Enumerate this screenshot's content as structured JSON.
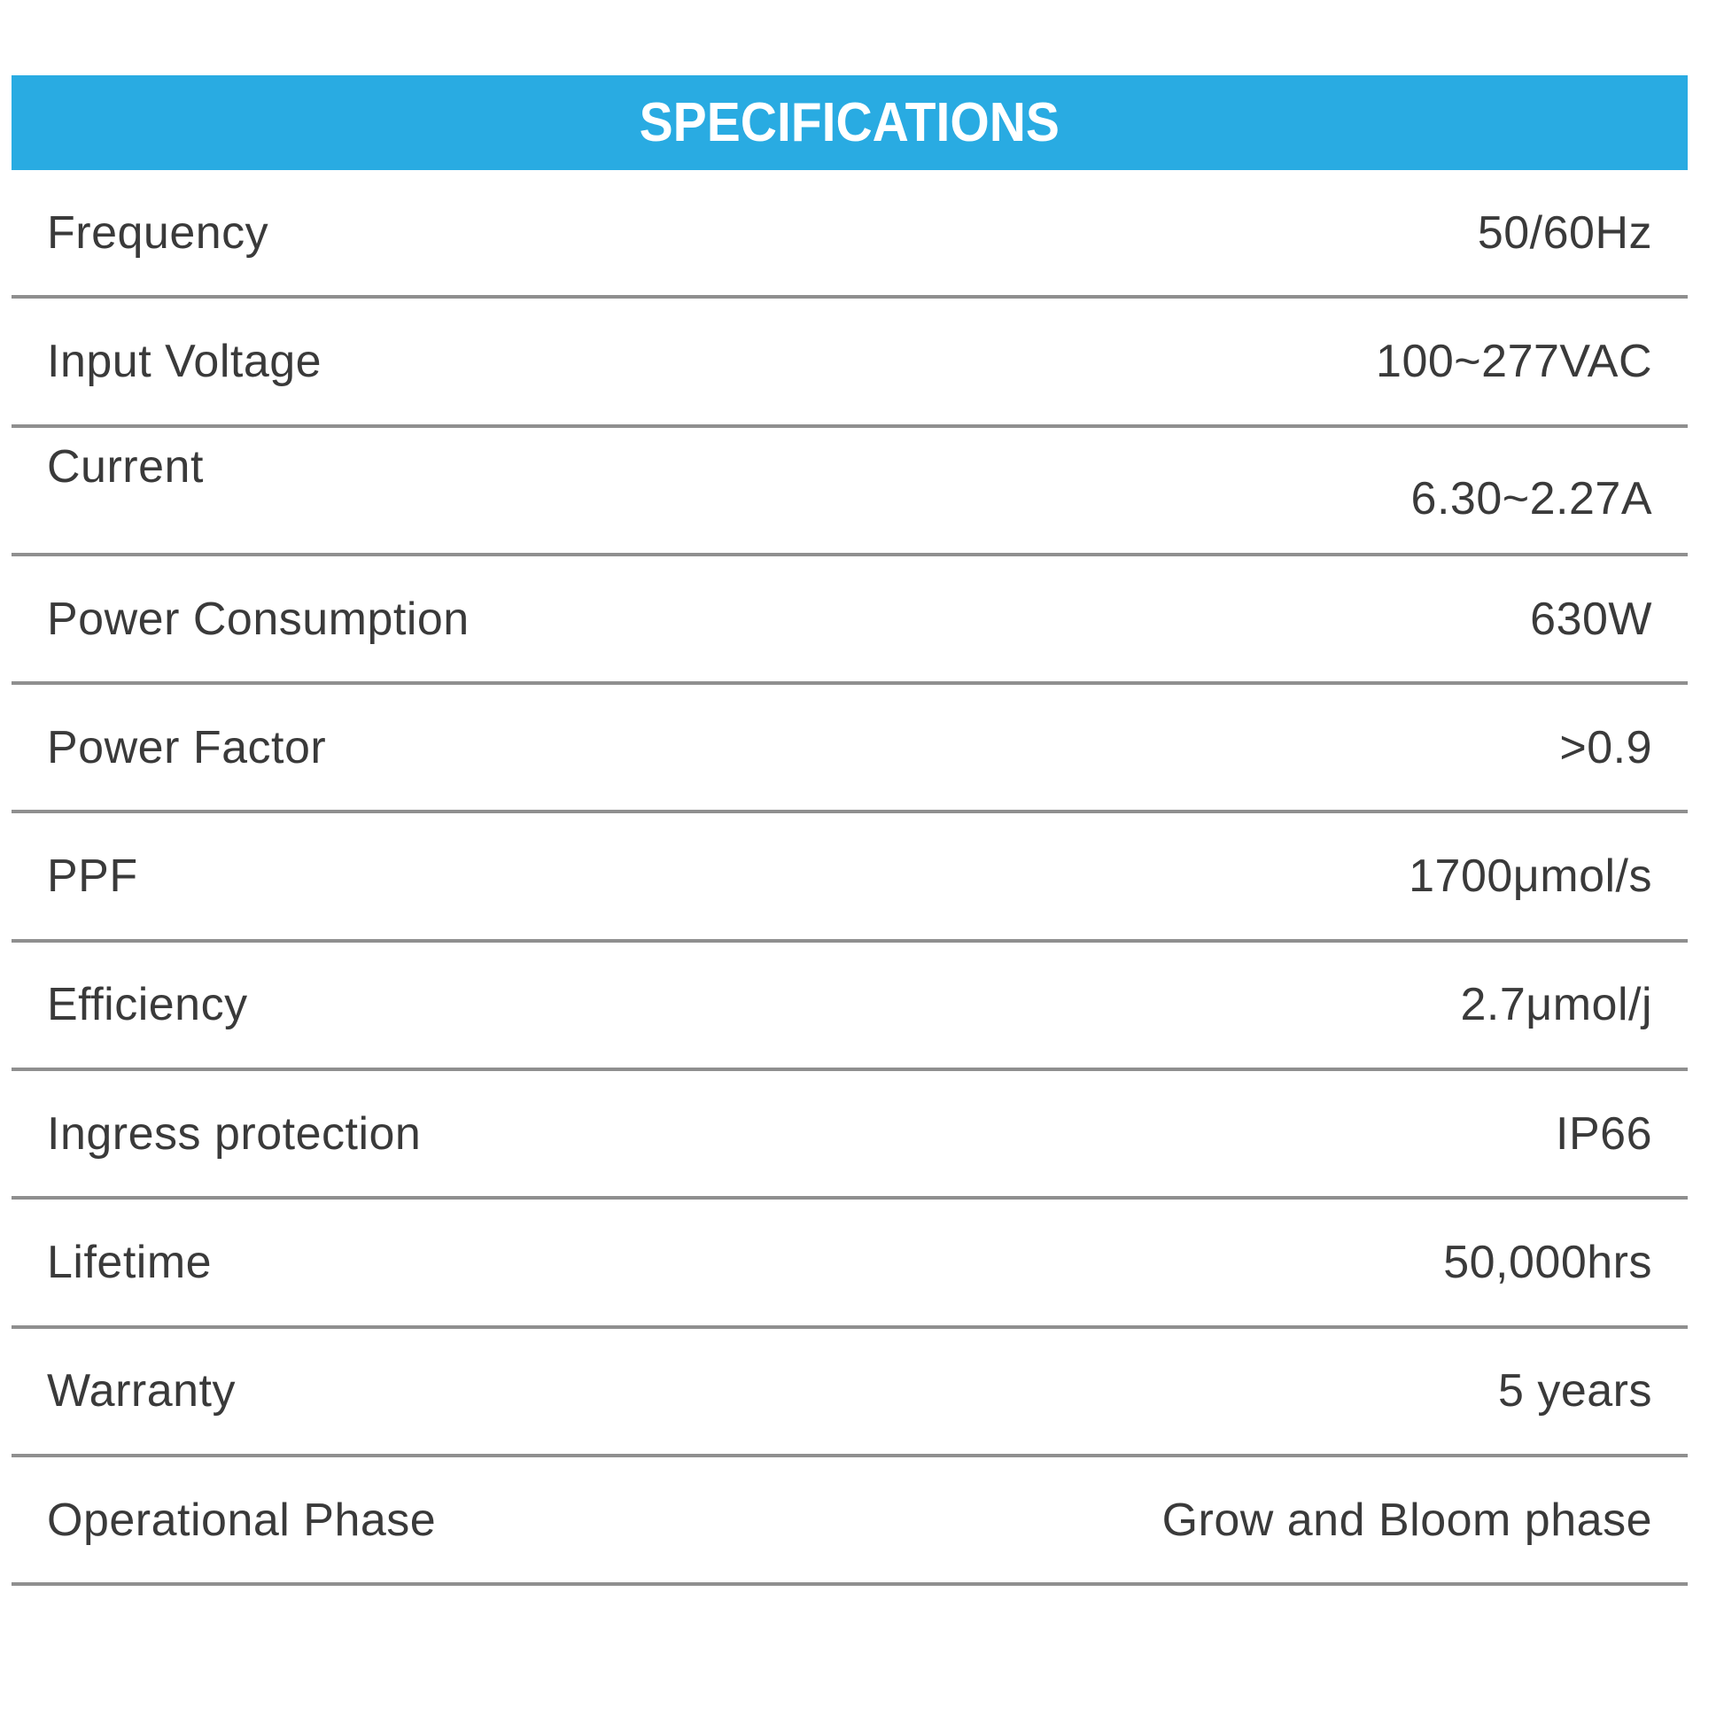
{
  "table": {
    "header": {
      "title": "SPECIFICATIONS",
      "background_color": "#29abe2",
      "text_color": "#ffffff"
    },
    "divider_color": "#8f8f8f",
    "body_text_color": "#3a3a3a",
    "rows": [
      {
        "label": "Frequency",
        "value": "50/60Hz"
      },
      {
        "label": "Input Voltage",
        "value": "100~277VAC"
      },
      {
        "label": "Current",
        "value": "6.30~2.27A"
      },
      {
        "label": "Power Consumption",
        "value": "630W"
      },
      {
        "label": "Power Factor",
        "value": ">0.9"
      },
      {
        "label": "PPF",
        "value": "1700μmol/s"
      },
      {
        "label": "Efficiency",
        "value": "2.7μmol/j"
      },
      {
        "label": "Ingress protection",
        "value": "IP66"
      },
      {
        "label": "Lifetime",
        "value": "50,000hrs"
      },
      {
        "label": "Warranty",
        "value": "5 years"
      },
      {
        "label": "Operational Phase",
        "value": "Grow and Bloom phase"
      }
    ]
  }
}
